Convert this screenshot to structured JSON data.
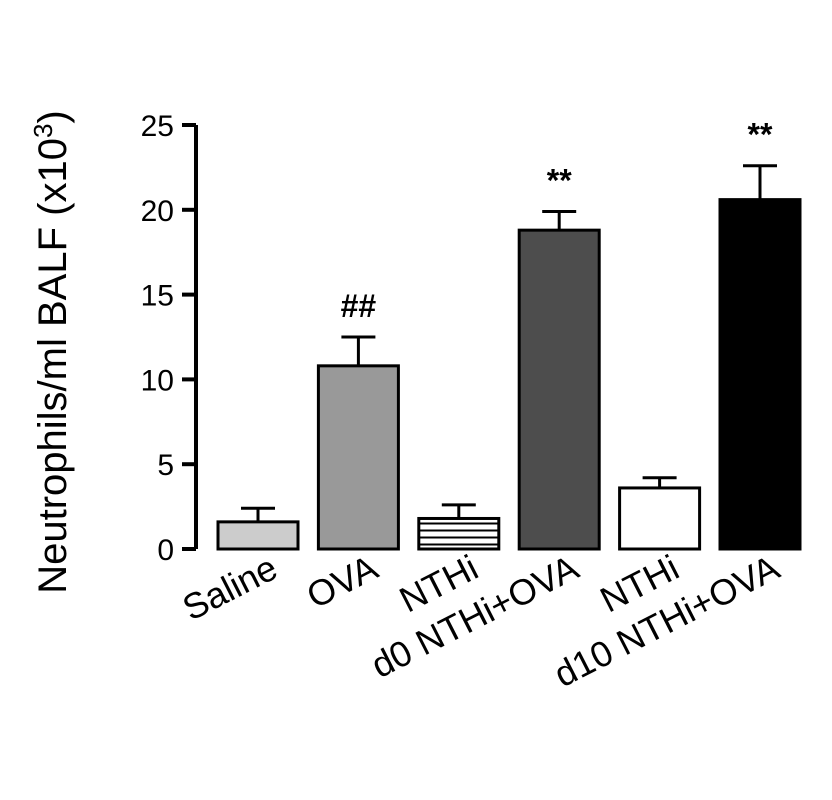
{
  "chart_data": {
    "type": "bar",
    "title": "",
    "ylabel": {
      "main": "Neutrophils/ml BALF (x10",
      "sup": "3",
      "end": ")"
    },
    "ylim": [
      0,
      25
    ],
    "yticks": [
      0,
      5,
      10,
      15,
      20,
      25
    ],
    "grid": false,
    "categories": [
      "Saline",
      "OVA",
      "NTHi",
      "d0 NTHi+OVA",
      "NTHi",
      "d10 NTHi+OVA"
    ],
    "values": [
      1.6,
      10.8,
      1.8,
      18.8,
      3.6,
      20.6
    ],
    "errors": [
      0.8,
      1.7,
      0.8,
      1.1,
      0.6,
      2.0
    ],
    "fills": [
      "#cccccc",
      "#999999",
      "hatch",
      "#4d4d4d",
      "#ffffff",
      "#000000"
    ],
    "annotations": [
      "",
      "##",
      "",
      "**",
      "",
      "**"
    ]
  }
}
